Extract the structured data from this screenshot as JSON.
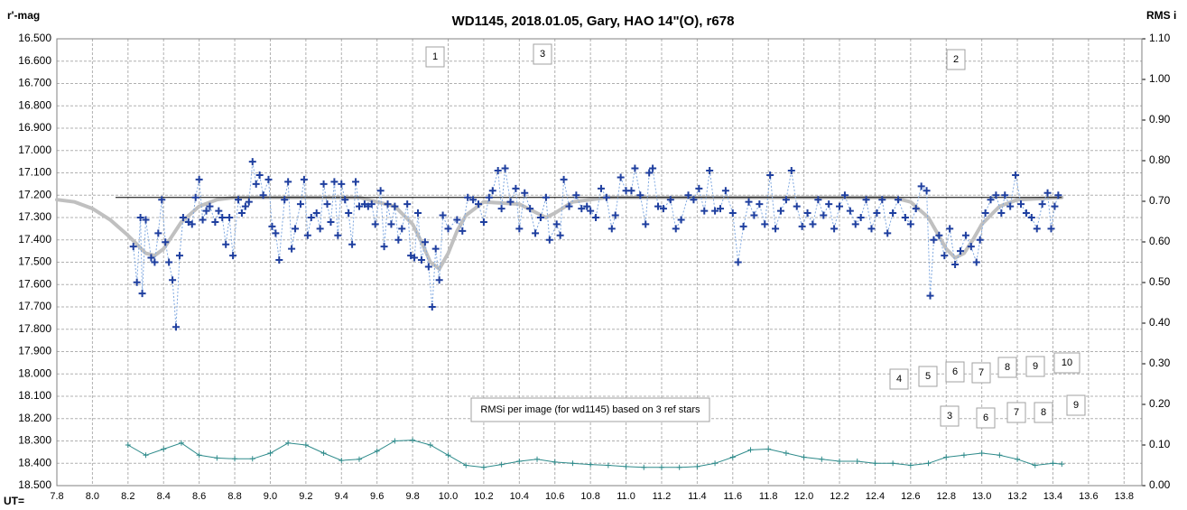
{
  "chart_data": {
    "type": "scatter",
    "title": "WD1145, 2018.01.05,  Gary, HAO 14\"(O), r678",
    "ylabel": "r'-mag",
    "y2label": "RMS i",
    "xlabel": "UT=",
    "xlim": [
      7.8,
      13.9
    ],
    "ylim": [
      18.5,
      16.5
    ],
    "y2lim": [
      0,
      1.1
    ],
    "grid": true,
    "xticks": [
      7.8,
      {
        "value": 8,
        "label": "8.0"
      },
      8.2,
      8.4,
      8.6,
      8.8,
      {
        "value": 9,
        "label": "9.0"
      },
      9.2,
      9.4,
      9.6,
      9.8,
      {
        "value": 10,
        "label": "10.0"
      },
      10.2,
      10.4,
      10.6,
      10.8,
      {
        "value": 11,
        "label": "11.0"
      },
      11.2,
      11.4,
      11.6,
      11.8,
      {
        "value": 12,
        "label": "12.0"
      },
      12.2,
      12.4,
      12.6,
      12.8,
      {
        "value": 13,
        "label": "13.0"
      },
      13.2,
      13.4,
      13.6,
      13.8
    ],
    "yticks": [
      {
        "value": 16.5,
        "label": "16.500"
      },
      {
        "value": 16.6,
        "label": "16.600"
      },
      {
        "value": 16.7,
        "label": "16.700"
      },
      {
        "value": 16.8,
        "label": "16.800"
      },
      {
        "value": 16.9,
        "label": "16.900"
      },
      {
        "value": 17,
        "label": "17.000"
      },
      {
        "value": 17.1,
        "label": "17.100"
      },
      {
        "value": 17.2,
        "label": "17.200"
      },
      {
        "value": 17.3,
        "label": "17.300"
      },
      {
        "value": 17.4,
        "label": "17.400"
      },
      {
        "value": 17.5,
        "label": "17.500"
      },
      {
        "value": 17.6,
        "label": "17.600"
      },
      {
        "value": 17.7,
        "label": "17.700"
      },
      {
        "value": 17.8,
        "label": "17.800"
      },
      {
        "value": 17.9,
        "label": "17.900"
      },
      {
        "value": 18,
        "label": "18.000"
      },
      {
        "value": 18.1,
        "label": "18.100"
      },
      {
        "value": 18.2,
        "label": "18.200"
      },
      {
        "value": 18.3,
        "label": "18.300"
      },
      {
        "value": 18.4,
        "label": "18.400"
      },
      {
        "value": 18.5,
        "label": "18.500"
      }
    ],
    "y2ticks": [
      {
        "value": 0,
        "label": "0.00"
      },
      {
        "value": 0.1,
        "label": "0.10"
      },
      {
        "value": 0.2,
        "label": "0.20"
      },
      {
        "value": 0.3,
        "label": "0.30"
      },
      {
        "value": 0.4,
        "label": "0.40"
      },
      {
        "value": 0.5,
        "label": "0.50"
      },
      {
        "value": 0.6,
        "label": "0.60"
      },
      {
        "value": 0.7,
        "label": "0.70"
      },
      {
        "value": 0.8,
        "label": "0.80"
      },
      {
        "value": 0.9,
        "label": "0.90"
      },
      {
        "value": 1,
        "label": "1.00"
      },
      {
        "value": 1.1,
        "label": "1.10"
      }
    ],
    "series": [
      {
        "color": "#c0c0c0",
        "style": "line",
        "x": [
          7.8,
          7.9,
          8.0,
          8.1,
          8.2,
          8.25,
          8.3,
          8.35,
          8.4,
          8.45,
          8.5,
          8.6,
          8.7,
          8.8,
          9.0,
          9.5,
          9.7,
          9.8,
          9.85,
          9.9,
          9.95,
          10.0,
          10.05,
          10.1,
          10.2,
          10.4,
          10.5,
          10.55,
          10.6,
          10.7,
          10.9,
          12.5,
          12.6,
          12.7,
          12.75,
          12.8,
          12.85,
          12.9,
          12.95,
          13.0,
          13.1,
          13.2,
          13.45
        ],
        "values": [
          17.22,
          17.23,
          17.26,
          17.31,
          17.38,
          17.42,
          17.46,
          17.47,
          17.44,
          17.38,
          17.32,
          17.25,
          17.22,
          17.21,
          17.21,
          17.21,
          17.25,
          17.33,
          17.41,
          17.5,
          17.53,
          17.46,
          17.36,
          17.29,
          17.23,
          17.24,
          17.28,
          17.3,
          17.28,
          17.23,
          17.21,
          17.21,
          17.23,
          17.3,
          17.37,
          17.44,
          17.48,
          17.46,
          17.4,
          17.33,
          17.25,
          17.22,
          17.21
        ]
      },
      {
        "color": "#000000",
        "style": "thin",
        "x": [
          8.13,
          13.45
        ],
        "values": [
          17.21,
          17.21
        ]
      },
      {
        "color": "#1f3f9f",
        "style": "cross",
        "x": [
          8.23,
          8.25,
          8.27,
          8.28,
          8.3,
          8.33,
          8.35,
          8.37,
          8.39,
          8.41,
          8.43,
          8.45,
          8.47,
          8.49,
          8.51,
          8.54,
          8.56,
          8.58,
          8.6,
          8.62,
          8.64,
          8.66,
          8.69,
          8.71,
          8.73,
          8.75,
          8.77,
          8.79,
          8.82,
          8.84,
          8.86,
          8.88,
          8.9,
          8.92,
          8.94,
          8.96,
          8.99,
          9.01,
          9.03,
          9.05,
          9.08,
          9.1,
          9.12,
          9.14,
          9.17,
          9.19,
          9.21,
          9.23,
          9.26,
          9.28,
          9.3,
          9.32,
          9.34,
          9.36,
          9.38,
          9.4,
          9.42,
          9.44,
          9.46,
          9.48,
          9.5,
          9.53,
          9.55,
          9.57,
          9.59,
          9.62,
          9.64,
          9.66,
          9.68,
          9.7,
          9.72,
          9.74,
          9.77,
          9.79,
          9.81,
          9.83,
          9.85,
          9.87,
          9.89,
          9.91,
          9.93,
          9.95,
          9.97,
          10.0,
          10.05,
          10.08,
          10.11,
          10.14,
          10.17,
          10.2,
          10.23,
          10.25,
          10.28,
          10.3,
          10.32,
          10.35,
          10.38,
          10.4,
          10.43,
          10.46,
          10.49,
          10.52,
          10.55,
          10.57,
          10.61,
          10.63,
          10.65,
          10.68,
          10.72,
          10.75,
          10.78,
          10.8,
          10.83,
          10.86,
          10.89,
          10.92,
          10.94,
          10.97,
          11.0,
          11.03,
          11.05,
          11.08,
          11.11,
          11.13,
          11.15,
          11.18,
          11.21,
          11.25,
          11.28,
          11.31,
          11.35,
          11.38,
          11.41,
          11.44,
          11.47,
          11.5,
          11.53,
          11.56,
          11.6,
          11.63,
          11.66,
          11.69,
          11.72,
          11.75,
          11.78,
          11.81,
          11.84,
          11.87,
          11.9,
          11.93,
          11.96,
          11.99,
          12.02,
          12.05,
          12.08,
          12.11,
          12.14,
          12.17,
          12.2,
          12.23,
          12.26,
          12.29,
          12.32,
          12.35,
          12.38,
          12.41,
          12.44,
          12.47,
          12.5,
          12.53,
          12.57,
          12.6,
          12.63,
          12.66,
          12.69,
          12.71,
          12.73,
          12.76,
          12.79,
          12.82,
          12.85,
          12.88,
          12.91,
          12.94,
          12.97,
          12.99,
          13.02,
          13.05,
          13.08,
          13.11,
          13.13,
          13.16,
          13.19,
          13.22,
          13.25,
          13.28,
          13.31,
          13.34,
          13.37,
          13.39,
          13.41,
          13.43
        ],
        "values": [
          17.43,
          17.59,
          17.3,
          17.64,
          17.31,
          17.48,
          17.5,
          17.37,
          17.22,
          17.41,
          17.5,
          17.58,
          17.79,
          17.47,
          17.3,
          17.32,
          17.33,
          17.21,
          17.13,
          17.31,
          17.27,
          17.25,
          17.32,
          17.27,
          17.3,
          17.42,
          17.3,
          17.47,
          17.22,
          17.28,
          17.25,
          17.23,
          17.05,
          17.15,
          17.11,
          17.2,
          17.13,
          17.34,
          17.37,
          17.49,
          17.22,
          17.14,
          17.44,
          17.35,
          17.24,
          17.13,
          17.38,
          17.3,
          17.28,
          17.35,
          17.15,
          17.24,
          17.32,
          17.14,
          17.38,
          17.15,
          17.22,
          17.28,
          17.42,
          17.14,
          17.25,
          17.24,
          17.25,
          17.24,
          17.33,
          17.18,
          17.43,
          17.24,
          17.33,
          17.25,
          17.4,
          17.35,
          17.24,
          17.47,
          17.48,
          17.28,
          17.49,
          17.41,
          17.52,
          17.7,
          17.44,
          17.58,
          17.29,
          17.35,
          17.31,
          17.36,
          17.21,
          17.22,
          17.24,
          17.32,
          17.21,
          17.18,
          17.09,
          17.26,
          17.08,
          17.23,
          17.17,
          17.35,
          17.19,
          17.26,
          17.37,
          17.3,
          17.21,
          17.4,
          17.33,
          17.38,
          17.13,
          17.25,
          17.2,
          17.26,
          17.25,
          17.27,
          17.3,
          17.17,
          17.21,
          17.35,
          17.29,
          17.12,
          17.18,
          17.18,
          17.08,
          17.2,
          17.33,
          17.1,
          17.08,
          17.25,
          17.26,
          17.22,
          17.35,
          17.31,
          17.2,
          17.22,
          17.17,
          17.27,
          17.09,
          17.27,
          17.26,
          17.18,
          17.28,
          17.5,
          17.34,
          17.23,
          17.29,
          17.24,
          17.33,
          17.11,
          17.35,
          17.27,
          17.22,
          17.09,
          17.25,
          17.34,
          17.28,
          17.33,
          17.22,
          17.29,
          17.24,
          17.35,
          17.25,
          17.2,
          17.27,
          17.33,
          17.3,
          17.22,
          17.35,
          17.28,
          17.22,
          17.37,
          17.28,
          17.22,
          17.3,
          17.33,
          17.26,
          17.16,
          17.18,
          17.65,
          17.4,
          17.38,
          17.47,
          17.35,
          17.51,
          17.45,
          17.38,
          17.43,
          17.5,
          17.4,
          17.28,
          17.22,
          17.2,
          17.28,
          17.2,
          17.25,
          17.11,
          17.24,
          17.28,
          17.3,
          17.35,
          17.24,
          17.19,
          17.35,
          17.25,
          17.2
        ]
      },
      {
        "color": "#2e8b8b",
        "style": "small-cross",
        "axis": "y2",
        "x": [
          8.2,
          8.3,
          8.4,
          8.5,
          8.6,
          8.7,
          8.8,
          8.9,
          9.0,
          9.1,
          9.2,
          9.3,
          9.4,
          9.5,
          9.6,
          9.7,
          9.8,
          9.9,
          10.0,
          10.1,
          10.2,
          10.3,
          10.4,
          10.5,
          10.6,
          10.7,
          10.8,
          10.9,
          11.0,
          11.1,
          11.2,
          11.3,
          11.4,
          11.5,
          11.6,
          11.7,
          11.8,
          11.9,
          12.0,
          12.1,
          12.2,
          12.3,
          12.4,
          12.5,
          12.6,
          12.7,
          12.8,
          12.9,
          13.0,
          13.1,
          13.2,
          13.3,
          13.4,
          13.45
        ],
        "values": [
          0.1,
          0.075,
          0.09,
          0.105,
          0.075,
          0.068,
          0.066,
          0.066,
          0.08,
          0.105,
          0.1,
          0.08,
          0.062,
          0.065,
          0.085,
          0.11,
          0.112,
          0.1,
          0.075,
          0.05,
          0.045,
          0.052,
          0.06,
          0.065,
          0.058,
          0.055,
          0.052,
          0.05,
          0.047,
          0.045,
          0.045,
          0.045,
          0.047,
          0.055,
          0.07,
          0.088,
          0.09,
          0.08,
          0.07,
          0.065,
          0.06,
          0.06,
          0.055,
          0.055,
          0.05,
          0.055,
          0.07,
          0.075,
          0.08,
          0.075,
          0.065,
          0.05,
          0.055,
          0.053
        ]
      }
    ],
    "annotations": [
      "1",
      "3",
      "2",
      "4",
      "5",
      "6",
      "7",
      "8",
      "9",
      "10",
      "3",
      "6",
      "7",
      "8",
      "9",
      "RMSi per image (for wd1145) based on 3 ref stars"
    ]
  }
}
